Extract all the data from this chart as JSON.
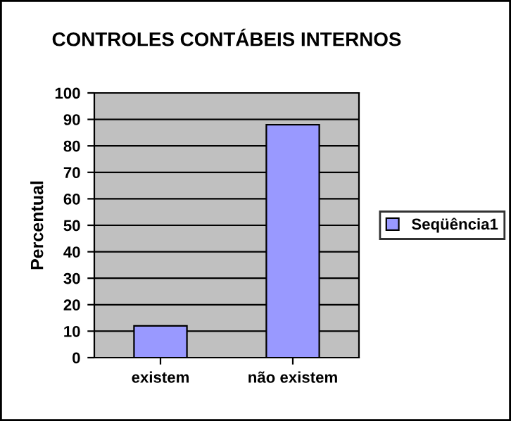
{
  "chart_data": {
    "type": "bar",
    "title": "CONTROLES CONTÁBEIS INTERNOS",
    "ylabel": "Percentual",
    "categories": [
      "existem",
      "não existem"
    ],
    "series": [
      {
        "name": "Seqüência1",
        "color": "#9999ff",
        "values": [
          12,
          88
        ]
      }
    ],
    "ylim": [
      0,
      100
    ],
    "yticks": [
      0,
      10,
      20,
      30,
      40,
      50,
      60,
      70,
      80,
      90,
      100
    ],
    "grid": "y",
    "legend": "right"
  }
}
